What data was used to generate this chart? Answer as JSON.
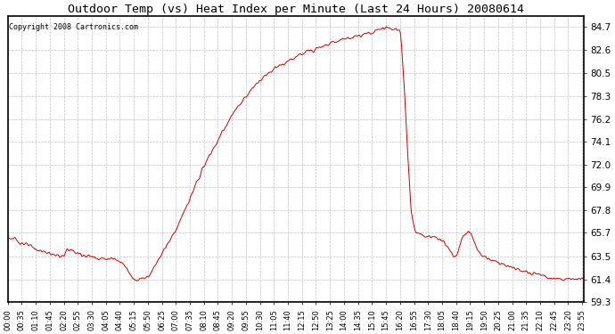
{
  "title": "Outdoor Temp (vs) Heat Index per Minute (Last 24 Hours) 20080614",
  "copyright": "Copyright 2008 Cartronics.com",
  "line_color": "#cc0000",
  "background_color": "#ffffff",
  "plot_bg_color": "#ffffff",
  "grid_color": "#bbbbbb",
  "ylim": [
    59.3,
    85.7
  ],
  "yticks": [
    59.3,
    61.4,
    63.5,
    65.7,
    67.8,
    69.9,
    72.0,
    74.1,
    76.2,
    78.3,
    80.5,
    82.6,
    84.7
  ],
  "xtick_labels": [
    "00:00",
    "00:35",
    "01:10",
    "01:45",
    "02:20",
    "02:55",
    "03:30",
    "04:05",
    "04:40",
    "05:15",
    "05:50",
    "06:25",
    "07:00",
    "07:35",
    "08:10",
    "08:45",
    "09:20",
    "09:55",
    "10:30",
    "11:05",
    "11:40",
    "12:15",
    "12:50",
    "13:25",
    "14:00",
    "14:35",
    "15:10",
    "15:45",
    "16:20",
    "16:55",
    "17:30",
    "18:05",
    "18:40",
    "19:15",
    "19:50",
    "20:25",
    "21:00",
    "21:35",
    "22:10",
    "22:45",
    "23:20",
    "23:55"
  ]
}
